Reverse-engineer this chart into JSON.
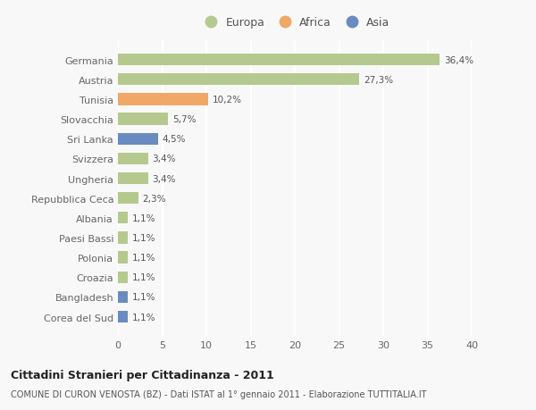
{
  "categories": [
    "Germania",
    "Austria",
    "Tunisia",
    "Slovacchia",
    "Sri Lanka",
    "Svizzera",
    "Ungheria",
    "Repubblica Ceca",
    "Albania",
    "Paesi Bassi",
    "Polonia",
    "Croazia",
    "Bangladesh",
    "Corea del Sud"
  ],
  "values": [
    36.4,
    27.3,
    10.2,
    5.7,
    4.5,
    3.4,
    3.4,
    2.3,
    1.1,
    1.1,
    1.1,
    1.1,
    1.1,
    1.1
  ],
  "labels": [
    "36,4%",
    "27,3%",
    "10,2%",
    "5,7%",
    "4,5%",
    "3,4%",
    "3,4%",
    "2,3%",
    "1,1%",
    "1,1%",
    "1,1%",
    "1,1%",
    "1,1%",
    "1,1%"
  ],
  "continents": [
    "Europa",
    "Europa",
    "Africa",
    "Europa",
    "Asia",
    "Europa",
    "Europa",
    "Europa",
    "Europa",
    "Europa",
    "Europa",
    "Europa",
    "Asia",
    "Asia"
  ],
  "colors": {
    "Europa": "#b5c98e",
    "Africa": "#f0a868",
    "Asia": "#6a8bbf"
  },
  "xlim": [
    0,
    40
  ],
  "xticks": [
    0,
    5,
    10,
    15,
    20,
    25,
    30,
    35,
    40
  ],
  "title": "Cittadini Stranieri per Cittadinanza - 2011",
  "subtitle": "COMUNE DI CURON VENOSTA (BZ) - Dati ISTAT al 1° gennaio 2011 - Elaborazione TUTTITALIA.IT",
  "background_color": "#f8f8f8",
  "plot_bg_color": "#f8f8f8",
  "grid_color": "#ffffff",
  "bar_height": 0.6,
  "legend_entries": [
    "Europa",
    "Africa",
    "Asia"
  ]
}
